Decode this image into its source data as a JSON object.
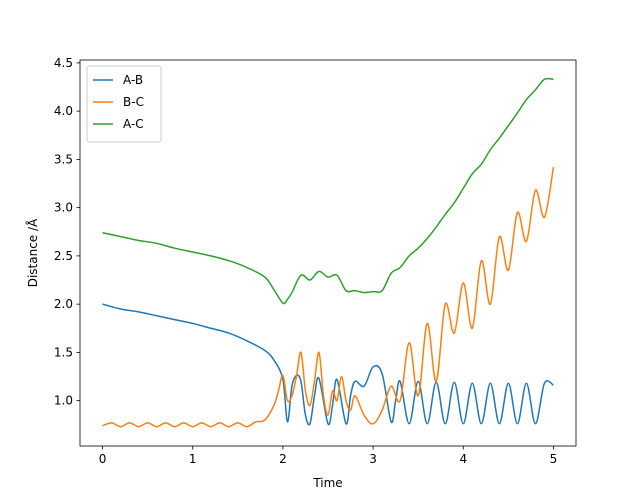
{
  "chart_data": {
    "type": "line",
    "title": "",
    "xlabel": "Time",
    "ylabel": "Distance /Å",
    "xlim": [
      -0.25,
      5.25
    ],
    "ylim": [
      0.53,
      4.53
    ],
    "xticks": [
      0,
      1,
      2,
      3,
      4,
      5
    ],
    "xtick_labels": [
      "0",
      "1",
      "2",
      "3",
      "4",
      "5"
    ],
    "yticks": [
      1.0,
      1.5,
      2.0,
      2.5,
      3.0,
      3.5,
      4.0,
      4.5
    ],
    "ytick_labels": [
      "1.0",
      "1.5",
      "2.0",
      "2.5",
      "3.0",
      "3.5",
      "4.0",
      "4.5"
    ],
    "grid": false,
    "legend_position": "top-left",
    "series": [
      {
        "name": "A-B",
        "color": "#1f77b4",
        "x": [
          0,
          0.2,
          0.4,
          0.6,
          0.8,
          1.0,
          1.2,
          1.4,
          1.6,
          1.8,
          1.9,
          2.0,
          2.05,
          2.1,
          2.15,
          2.2,
          2.25,
          2.3,
          2.35,
          2.4,
          2.5,
          2.55,
          2.6,
          2.7,
          2.75,
          2.8,
          2.9,
          3.0,
          3.1,
          3.2,
          3.25,
          3.3,
          3.4,
          3.5,
          3.6,
          3.7,
          3.8,
          3.9,
          4.0,
          4.1,
          4.2,
          4.3,
          4.4,
          4.5,
          4.6,
          4.7,
          4.8,
          4.9,
          5.0
        ],
        "y": [
          2.0,
          1.95,
          1.92,
          1.88,
          1.84,
          1.8,
          1.75,
          1.7,
          1.62,
          1.52,
          1.42,
          1.22,
          0.78,
          1.15,
          1.26,
          1.2,
          0.85,
          0.76,
          1.05,
          1.23,
          0.76,
          0.95,
          1.22,
          0.76,
          1.05,
          1.2,
          1.15,
          1.35,
          1.28,
          0.78,
          1.0,
          1.2,
          0.76,
          1.2,
          0.76,
          1.19,
          0.76,
          1.19,
          0.76,
          1.18,
          0.76,
          1.18,
          0.76,
          1.18,
          0.76,
          1.18,
          0.76,
          1.18,
          1.16
        ]
      },
      {
        "name": "B-C",
        "color": "#ff7f0e",
        "x": [
          0,
          0.1,
          0.2,
          0.3,
          0.4,
          0.5,
          0.6,
          0.7,
          0.8,
          0.9,
          1.0,
          1.1,
          1.2,
          1.3,
          1.4,
          1.5,
          1.6,
          1.7,
          1.8,
          1.9,
          1.95,
          2.0,
          2.05,
          2.1,
          2.15,
          2.2,
          2.25,
          2.3,
          2.35,
          2.4,
          2.45,
          2.5,
          2.55,
          2.6,
          2.65,
          2.7,
          2.75,
          2.8,
          2.9,
          3.0,
          3.1,
          3.2,
          3.3,
          3.4,
          3.5,
          3.6,
          3.7,
          3.8,
          3.9,
          4.0,
          4.1,
          4.2,
          4.3,
          4.4,
          4.5,
          4.6,
          4.7,
          4.8,
          4.9,
          5.0
        ],
        "y": [
          0.74,
          0.77,
          0.73,
          0.77,
          0.73,
          0.77,
          0.73,
          0.77,
          0.73,
          0.77,
          0.73,
          0.77,
          0.73,
          0.77,
          0.73,
          0.77,
          0.73,
          0.78,
          0.8,
          0.95,
          1.1,
          1.26,
          1.0,
          1.05,
          1.25,
          1.5,
          1.1,
          0.95,
          1.2,
          1.5,
          1.05,
          0.85,
          1.1,
          1.0,
          1.25,
          1.0,
          0.9,
          1.05,
          0.85,
          0.76,
          0.9,
          1.15,
          1.0,
          1.6,
          1.05,
          1.8,
          1.2,
          2.0,
          1.7,
          2.22,
          1.75,
          2.45,
          2.0,
          2.7,
          2.35,
          2.95,
          2.65,
          3.18,
          2.9,
          3.42
        ]
      },
      {
        "name": "A-C",
        "color": "#2ca02c",
        "x": [
          0,
          0.2,
          0.4,
          0.6,
          0.8,
          1.0,
          1.2,
          1.4,
          1.6,
          1.8,
          1.9,
          2.0,
          2.05,
          2.1,
          2.2,
          2.3,
          2.4,
          2.5,
          2.6,
          2.7,
          2.8,
          2.9,
          3.0,
          3.1,
          3.2,
          3.3,
          3.4,
          3.5,
          3.6,
          3.7,
          3.8,
          3.9,
          4.0,
          4.1,
          4.2,
          4.3,
          4.4,
          4.5,
          4.6,
          4.7,
          4.8,
          4.9,
          5.0
        ],
        "y": [
          2.74,
          2.7,
          2.66,
          2.63,
          2.58,
          2.54,
          2.5,
          2.45,
          2.38,
          2.28,
          2.15,
          2.01,
          2.05,
          2.12,
          2.3,
          2.25,
          2.34,
          2.28,
          2.3,
          2.14,
          2.14,
          2.12,
          2.13,
          2.14,
          2.32,
          2.38,
          2.5,
          2.58,
          2.68,
          2.8,
          2.93,
          3.05,
          3.2,
          3.35,
          3.45,
          3.6,
          3.72,
          3.85,
          3.98,
          4.12,
          4.22,
          4.33,
          4.33
        ]
      }
    ]
  }
}
